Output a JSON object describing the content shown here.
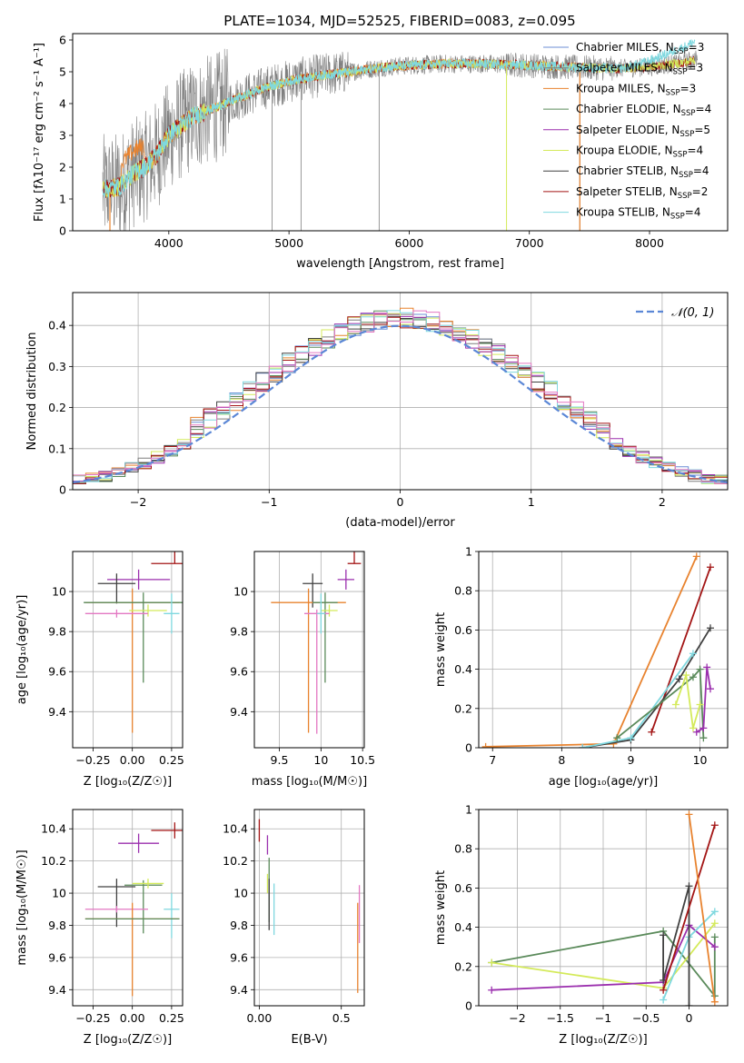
{
  "figure_title": "PLATE=1034, MJD=52525, FIBERID=0083, z=0.095",
  "colors": {
    "chabrier_miles": "#6b8ed6",
    "salpeter_miles": "#7f7f7f",
    "kroupa_miles": "#e8832f",
    "chabrier_elodie": "#5a8a5a",
    "salpeter_elodie": "#9b2fae",
    "kroupa_elodie": "#d4ea5a",
    "chabrier_stelib": "#404040",
    "salpeter_stelib": "#a31515",
    "kroupa_stelib": "#7fd8df",
    "pink": "#e377c2",
    "gaussian": "#5b87d6"
  },
  "chart_data": [
    {
      "id": "spectrum",
      "type": "line",
      "title": "PLATE=1034, MJD=52525, FIBERID=0083, z=0.095",
      "xlabel": "wavelength [Angstrom, rest frame]",
      "ylabel": "Flux [fλ10⁻¹⁷ erg cm⁻² s⁻¹ A⁻¹]",
      "xlim": [
        3200,
        8650
      ],
      "ylim": [
        0,
        6.2
      ],
      "xticks": [
        4000,
        5000,
        6000,
        7000,
        8000
      ],
      "yticks": [
        0,
        1,
        2,
        3,
        4,
        5,
        6
      ],
      "grid": false,
      "legend_position": "top-right",
      "legend": [
        "Chabrier MILES, N_SSP=3",
        "Salpeter MILES, N_SSP=3",
        "Kroupa MILES, N_SSP=3",
        "Chabrier ELODIE, N_SSP=4",
        "Salpeter ELODIE, N_SSP=5",
        "Kroupa ELODIE, N_SSP=4",
        "Chabrier STELIB, N_SSP=4",
        "Salpeter STELIB, N_SSP=2",
        "Kroupa STELIB, N_SSP=4"
      ],
      "continuum_wavelength": [
        3450,
        3600,
        3700,
        3800,
        3900,
        4000,
        4200,
        4400,
        4600,
        4800,
        5000,
        5200,
        5500,
        5800,
        6000,
        6300,
        6600,
        7000,
        7300,
        7700,
        8000,
        8300,
        8400
      ],
      "continuum_flux": [
        1.3,
        1.4,
        1.8,
        2.0,
        2.4,
        3.0,
        3.6,
        3.9,
        4.2,
        4.5,
        4.7,
        4.85,
        5.0,
        5.15,
        5.2,
        5.25,
        5.25,
        5.2,
        5.15,
        5.1,
        5.15,
        5.3,
        5.4
      ]
    },
    {
      "id": "residuals",
      "type": "histogram",
      "xlabel": "(data-model)/error",
      "ylabel": "Normed distribution",
      "xlim": [
        -2.5,
        2.5
      ],
      "ylim": [
        0,
        0.48
      ],
      "xticks": [
        -2,
        -1,
        0,
        1,
        2
      ],
      "yticks": [
        0.0,
        0.1,
        0.2,
        0.3,
        0.4
      ],
      "grid": true,
      "legend_position": "top-right",
      "legend": [
        "𝒩(0, 1)"
      ],
      "bin_width": 0.1
    },
    {
      "id": "z_age",
      "type": "errorbar",
      "xlabel": "Z [log₁₀(Z/Z☉)]",
      "ylabel": "age  [log₁₀(age/yr)]",
      "xlim": [
        -0.38,
        0.32
      ],
      "ylim": [
        9.22,
        10.2
      ],
      "xticks": [
        -0.25,
        0.0,
        0.25
      ],
      "yticks": [
        9.4,
        9.6,
        9.8,
        10.0
      ],
      "grid": true,
      "points": [
        {
          "series": "salpeter_stelib",
          "x": 0.27,
          "y": 10.14,
          "xerr": 0.15,
          "yerr": [
            0.0,
            0.1
          ]
        },
        {
          "series": "salpeter_elodie",
          "x": 0.04,
          "y": 10.06,
          "xerr": 0.2,
          "yerr": [
            0.05,
            0.05
          ]
        },
        {
          "series": "chabrier_stelib",
          "x": -0.1,
          "y": 10.04,
          "xerr": 0.12,
          "yerr": [
            0.1,
            0.05
          ]
        },
        {
          "series": "kroupa_miles",
          "x": 0.0,
          "y": 9.945,
          "xerr": 0.3,
          "yerr": [
            0.65,
            0.07
          ]
        },
        {
          "series": "chabrier_elodie",
          "x": 0.07,
          "y": 9.945,
          "xerr": 0.38,
          "yerr": [
            0.4,
            0.05
          ]
        },
        {
          "series": "kroupa_elodie",
          "x": 0.1,
          "y": 9.905,
          "xerr": 0.12,
          "yerr": [
            0.03,
            0.03
          ]
        },
        {
          "series": "pink",
          "x": -0.1,
          "y": 9.89,
          "xerr": 0.2,
          "yerr": [
            0.02,
            0.02
          ]
        },
        {
          "series": "kroupa_stelib",
          "x": 0.25,
          "y": 9.89,
          "xerr": 0.05,
          "yerr": [
            0.1,
            0.1
          ]
        }
      ]
    },
    {
      "id": "mass_age",
      "type": "errorbar",
      "xlabel": "mass [log₁₀(M/M☉)]",
      "ylabel": "",
      "xlim": [
        9.2,
        10.52
      ],
      "ylim": [
        9.22,
        10.2
      ],
      "xticks": [
        9.5,
        10.0,
        10.5
      ],
      "yticks": [
        9.4,
        9.6,
        9.8,
        10.0
      ],
      "grid": true,
      "points": [
        {
          "series": "salpeter_stelib",
          "x": 10.4,
          "y": 10.14,
          "xerr": 0.08,
          "yerr": [
            0.0,
            0.1
          ]
        },
        {
          "series": "salpeter_elodie",
          "x": 10.3,
          "y": 10.06,
          "xerr": 0.1,
          "yerr": [
            0.05,
            0.05
          ]
        },
        {
          "series": "chabrier_stelib",
          "x": 9.9,
          "y": 10.04,
          "xerr": 0.12,
          "yerr": [
            0.12,
            0.05
          ]
        },
        {
          "series": "kroupa_miles",
          "x": 9.85,
          "y": 9.945,
          "xerr": 0.45,
          "yerr": [
            0.65,
            0.07
          ]
        },
        {
          "series": "chabrier_elodie",
          "x": 10.05,
          "y": 9.945,
          "xerr": 0.15,
          "yerr": [
            0.4,
            0.05
          ]
        },
        {
          "series": "kroupa_elodie",
          "x": 10.1,
          "y": 9.905,
          "xerr": 0.1,
          "yerr": [
            0.03,
            0.03
          ]
        },
        {
          "series": "pink",
          "x": 9.95,
          "y": 9.89,
          "xerr": 0.15,
          "yerr": [
            0.6,
            0.02
          ]
        },
        {
          "series": "kroupa_stelib",
          "x": 10.0,
          "y": 9.89,
          "xerr": 0.05,
          "yerr": [
            0.1,
            0.1
          ]
        }
      ]
    },
    {
      "id": "age_weight",
      "type": "line",
      "xlabel": "age  [log₁₀(age/yr)]",
      "ylabel": "mass weight",
      "xlim": [
        6.8,
        10.4
      ],
      "ylim": [
        0,
        1
      ],
      "xticks": [
        7,
        8,
        9,
        10
      ],
      "yticks": [
        0.0,
        0.2,
        0.4,
        0.6,
        0.8,
        1.0
      ],
      "grid": true,
      "series": [
        {
          "key": "kroupa_miles",
          "x": [
            6.9,
            8.75,
            9.95
          ],
          "y": [
            0.005,
            0.02,
            0.975
          ]
        },
        {
          "key": "salpeter_stelib",
          "x": [
            9.3,
            10.15
          ],
          "y": [
            0.08,
            0.92
          ]
        },
        {
          "key": "chabrier_stelib",
          "x": [
            8.3,
            9.0,
            9.7,
            10.15
          ],
          "y": [
            0.0,
            0.04,
            0.35,
            0.61
          ]
        },
        {
          "key": "kroupa_stelib",
          "x": [
            8.3,
            9.0,
            9.9
          ],
          "y": [
            0.0,
            0.05,
            0.48
          ]
        },
        {
          "key": "chabrier_elodie",
          "x": [
            8.8,
            9.9,
            10.0,
            10.05
          ],
          "y": [
            0.05,
            0.36,
            0.4,
            0.05
          ]
        },
        {
          "key": "salpeter_elodie",
          "x": [
            9.95,
            10.05,
            10.1,
            10.15
          ],
          "y": [
            0.08,
            0.1,
            0.41,
            0.3
          ]
        },
        {
          "key": "kroupa_elodie",
          "x": [
            9.65,
            9.8,
            9.9,
            10.0
          ],
          "y": [
            0.22,
            0.37,
            0.1,
            0.22
          ]
        }
      ]
    },
    {
      "id": "z_mass",
      "type": "errorbar",
      "xlabel": "Z [log₁₀(Z/Z☉)]",
      "ylabel": "mass [log₁₀(M/M☉)]",
      "xlim": [
        -0.38,
        0.32
      ],
      "ylim": [
        9.3,
        10.52
      ],
      "xticks": [
        -0.25,
        0.0,
        0.25
      ],
      "yticks": [
        9.4,
        9.6,
        9.8,
        10.0,
        10.2,
        10.4
      ],
      "grid": true,
      "points": [
        {
          "series": "salpeter_stelib",
          "x": 0.27,
          "y": 10.39,
          "xerr": 0.15,
          "yerr": [
            0.05,
            0.05
          ]
        },
        {
          "series": "salpeter_elodie",
          "x": 0.04,
          "y": 10.31,
          "xerr": 0.13,
          "yerr": [
            0.06,
            0.06
          ]
        },
        {
          "series": "chabrier_elodie",
          "x": 0.07,
          "y": 10.05,
          "xerr": 0.12,
          "yerr": [
            0.3,
            0.03
          ]
        },
        {
          "series": "kroupa_elodie",
          "x": 0.1,
          "y": 10.06,
          "xerr": 0.1,
          "yerr": [
            0.03,
            0.03
          ]
        },
        {
          "series": "chabrier_stelib",
          "x": -0.1,
          "y": 10.04,
          "xerr": 0.12,
          "yerr": [
            0.25,
            0.05
          ]
        },
        {
          "series": "pink",
          "x": -0.1,
          "y": 9.9,
          "xerr": 0.2,
          "yerr": [
            0.02,
            0.02
          ]
        },
        {
          "series": "kroupa_stelib",
          "x": 0.25,
          "y": 9.9,
          "xerr": 0.05,
          "yerr": [
            0.18,
            0.1
          ]
        },
        {
          "series": "kroupa_miles",
          "x": 0.0,
          "y": 9.84,
          "xerr": 0.3,
          "yerr": [
            0.48,
            0.1
          ]
        },
        {
          "series": "chabrier_elodie",
          "x": 0.0,
          "y": 9.84,
          "xerr": 0.3,
          "yerr": [
            0.0,
            0.0
          ]
        }
      ]
    },
    {
      "id": "ebv_mass",
      "type": "errorbar",
      "xlabel": "E(B-V)",
      "ylabel": "",
      "xlim": [
        -0.03,
        0.64
      ],
      "ylim": [
        9.3,
        10.52
      ],
      "xticks": [
        0.0,
        0.5
      ],
      "yticks": [
        9.4,
        9.6,
        9.8,
        10.0,
        10.2,
        10.4
      ],
      "grid": true,
      "points": [
        {
          "series": "salpeter_stelib",
          "x": 0.0,
          "y": 10.39,
          "xerr": 0,
          "yerr": [
            0.07,
            0.07
          ]
        },
        {
          "series": "salpeter_elodie",
          "x": 0.05,
          "y": 10.3,
          "xerr": 0,
          "yerr": [
            0.06,
            0.06
          ]
        },
        {
          "series": "chabrier_elodie",
          "x": 0.06,
          "y": 10.02,
          "xerr": 0,
          "yerr": [
            0.2,
            0.2
          ]
        },
        {
          "series": "kroupa_elodie",
          "x": 0.05,
          "y": 10.06,
          "xerr": 0,
          "yerr": [
            0.06,
            0.06
          ]
        },
        {
          "series": "chabrier_stelib",
          "x": 0.06,
          "y": 9.97,
          "xerr": 0,
          "yerr": [
            0.2,
            0.12
          ]
        },
        {
          "series": "kroupa_stelib",
          "x": 0.09,
          "y": 9.9,
          "xerr": 0,
          "yerr": [
            0.16,
            0.16
          ]
        },
        {
          "series": "kroupa_miles",
          "x": 0.6,
          "y": 9.66,
          "xerr": 0,
          "yerr": [
            0.28,
            0.28
          ]
        },
        {
          "series": "pink",
          "x": 0.61,
          "y": 9.87,
          "xerr": 0,
          "yerr": [
            0.18,
            0.18
          ]
        }
      ]
    },
    {
      "id": "z_weight",
      "type": "line",
      "xlabel": "Z [log₁₀(Z/Z☉)]",
      "ylabel": "mass weight",
      "xlim": [
        -2.45,
        0.45
      ],
      "ylim": [
        0,
        1
      ],
      "xticks": [
        -2.0,
        -1.5,
        -1.0,
        -0.5,
        0.0
      ],
      "yticks": [
        0.0,
        0.2,
        0.4,
        0.6,
        0.8,
        1.0
      ],
      "grid": true,
      "series": [
        {
          "key": "chabrier_elodie",
          "x": [
            -2.3,
            -0.3,
            0.3,
            0.3
          ],
          "y": [
            0.22,
            0.38,
            0.05,
            0.35
          ]
        },
        {
          "key": "kroupa_elodie",
          "x": [
            -2.3,
            -0.3,
            0.3
          ],
          "y": [
            0.22,
            0.09,
            0.42
          ]
        },
        {
          "key": "salpeter_elodie",
          "x": [
            -2.3,
            -0.3,
            0.0,
            0.3
          ],
          "y": [
            0.08,
            0.12,
            0.41,
            0.3
          ]
        },
        {
          "key": "kroupa_stelib",
          "x": [
            -0.3,
            0.0,
            0.3
          ],
          "y": [
            0.03,
            0.35,
            0.48
          ]
        },
        {
          "key": "chabrier_stelib",
          "x": [
            -0.3,
            -0.3,
            0.0,
            0.0
          ],
          "y": [
            0.36,
            0.13,
            0.61,
            0.0
          ]
        },
        {
          "key": "salpeter_stelib",
          "x": [
            -0.3,
            0.3
          ],
          "y": [
            0.08,
            0.92
          ]
        },
        {
          "key": "kroupa_miles",
          "x": [
            0.0,
            0.3
          ],
          "y": [
            0.975,
            0.02
          ]
        }
      ]
    }
  ],
  "texts": {
    "spectrum_xlabel": "wavelength [Angstrom, rest frame]",
    "residuals_xlabel": "(data-model)/error",
    "residuals_ylabel": "Normed distribution",
    "gaussian_label": "𝒩(0, 1)",
    "z_age_xlabel": "Z [log₁₀(Z/Z☉)]",
    "z_age_ylabel": "age  [log₁₀(age/yr)]",
    "mass_age_xlabel": "mass [log₁₀(M/M☉)]",
    "age_weight_xlabel": "age  [log₁₀(age/yr)]",
    "age_weight_ylabel": "mass weight",
    "z_mass_xlabel": "Z [log₁₀(Z/Z☉)]",
    "z_mass_ylabel": "mass [log₁₀(M/M☉)]",
    "ebv_xlabel": "E(B-V)",
    "z_weight_xlabel": "Z [log₁₀(Z/Z☉)]",
    "z_weight_ylabel": "mass weight"
  }
}
